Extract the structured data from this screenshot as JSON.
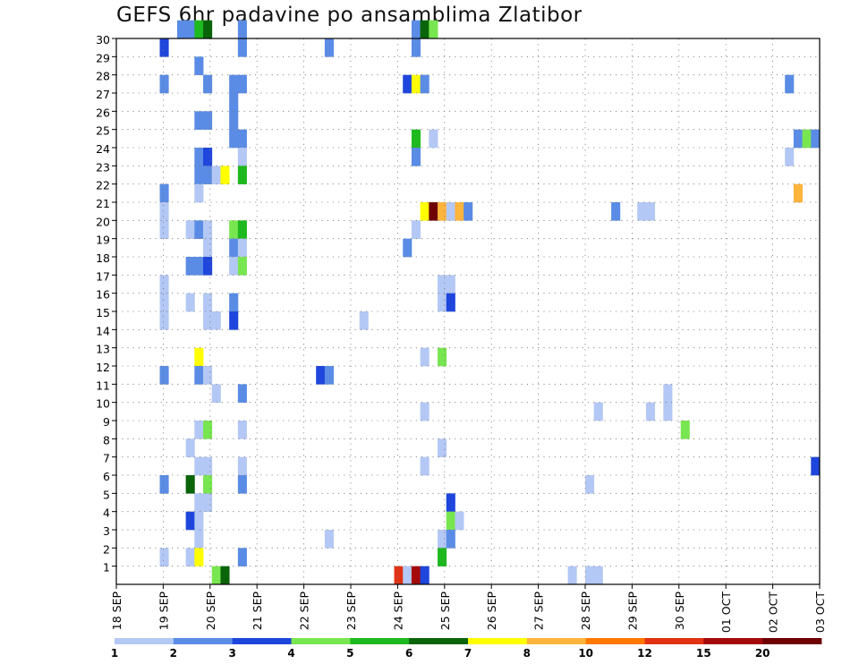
{
  "title": "GEFS 6hr padavine po ansamblima Zlatibor",
  "chart_data": {
    "type": "heatmap",
    "title": "GEFS 6hr padavine po ansamblima Zlatibor",
    "xlabel": "",
    "ylabel": "",
    "x_tick_labels": [
      "18 SEP",
      "19 SEP",
      "20 SEP",
      "21 SEP",
      "22 SEP",
      "23 SEP",
      "24 SEP",
      "25 SEP",
      "26 SEP",
      "27 SEP",
      "28 SEP",
      "29 SEP",
      "30 SEP",
      "01 OCT",
      "02 OCT",
      "03 OCT"
    ],
    "x_unit": "6h steps from 18 SEP 00Z",
    "y_tick_labels": [
      "1",
      "2",
      "3",
      "4",
      "5",
      "6",
      "7",
      "8",
      "9",
      "10",
      "11",
      "12",
      "13",
      "14",
      "15",
      "16",
      "17",
      "18",
      "19",
      "20",
      "21",
      "22",
      "23",
      "24",
      "25",
      "26",
      "27",
      "28",
      "29",
      "30"
    ],
    "ylim": [
      0,
      30
    ],
    "grid": true,
    "legend": "colorbar-bottom",
    "colorbar": {
      "boundaries": [
        "1",
        "2",
        "3",
        "4",
        "5",
        "6",
        "7",
        "8",
        "10",
        "12",
        "15",
        "20"
      ],
      "colors": [
        "#b4c8f5",
        "#5a8ce6",
        "#1e46dc",
        "#78e650",
        "#1eb91e",
        "#0a640a",
        "#ffff00",
        "#ffb43c",
        "#ff7800",
        "#e13214",
        "#a50a0a",
        "#6e0000"
      ]
    },
    "cells": [
      [
        7,
        30,
        1
      ],
      [
        8,
        30,
        1
      ],
      [
        9,
        30,
        4
      ],
      [
        10,
        30,
        5
      ],
      [
        14,
        30,
        1
      ],
      [
        34,
        30,
        1
      ],
      [
        35,
        30,
        5
      ],
      [
        36,
        30,
        3
      ],
      [
        5,
        29,
        2
      ],
      [
        14,
        29,
        1
      ],
      [
        24,
        29,
        1
      ],
      [
        34,
        29,
        1
      ],
      [
        9,
        28,
        1
      ],
      [
        5,
        27,
        1
      ],
      [
        10,
        27,
        1
      ],
      [
        13,
        27,
        1
      ],
      [
        14,
        27,
        1
      ],
      [
        33,
        27,
        2
      ],
      [
        34,
        27,
        6
      ],
      [
        35,
        27,
        1
      ],
      [
        77,
        27,
        1
      ],
      [
        13,
        26,
        1
      ],
      [
        9,
        25,
        1
      ],
      [
        10,
        25,
        1
      ],
      [
        13,
        25,
        1
      ],
      [
        13,
        24,
        1
      ],
      [
        14,
        24,
        1
      ],
      [
        34,
        24,
        4
      ],
      [
        36,
        24,
        0
      ],
      [
        78,
        24,
        1
      ],
      [
        79,
        24,
        3
      ],
      [
        80,
        24,
        1
      ],
      [
        9,
        23,
        1
      ],
      [
        10,
        23,
        2
      ],
      [
        14,
        23,
        0
      ],
      [
        34,
        23,
        1
      ],
      [
        77,
        23,
        0
      ],
      [
        9,
        22,
        1
      ],
      [
        10,
        22,
        1
      ],
      [
        11,
        22,
        0
      ],
      [
        12,
        22,
        6
      ],
      [
        14,
        22,
        4
      ],
      [
        5,
        21,
        1
      ],
      [
        9,
        21,
        0
      ],
      [
        78,
        21,
        7
      ],
      [
        5,
        20,
        0
      ],
      [
        35,
        20,
        6
      ],
      [
        36,
        20,
        11
      ],
      [
        37,
        20,
        7
      ],
      [
        38,
        20,
        0
      ],
      [
        39,
        20,
        7
      ],
      [
        40,
        20,
        1
      ],
      [
        57,
        20,
        1
      ],
      [
        60,
        20,
        0
      ],
      [
        61,
        20,
        0
      ],
      [
        5,
        19,
        0
      ],
      [
        8,
        19,
        0
      ],
      [
        9,
        19,
        1
      ],
      [
        10,
        19,
        0
      ],
      [
        13,
        19,
        3
      ],
      [
        14,
        19,
        4
      ],
      [
        34,
        19,
        0
      ],
      [
        10,
        18,
        0
      ],
      [
        13,
        18,
        1
      ],
      [
        14,
        18,
        0
      ],
      [
        33,
        18,
        1
      ],
      [
        8,
        17,
        1
      ],
      [
        9,
        17,
        1
      ],
      [
        10,
        17,
        2
      ],
      [
        13,
        17,
        0
      ],
      [
        14,
        17,
        3
      ],
      [
        5,
        16,
        0
      ],
      [
        37,
        16,
        0
      ],
      [
        38,
        16,
        0
      ],
      [
        5,
        15,
        0
      ],
      [
        8,
        15,
        0
      ],
      [
        10,
        15,
        0
      ],
      [
        13,
        15,
        1
      ],
      [
        37,
        15,
        0
      ],
      [
        38,
        15,
        2
      ],
      [
        5,
        14,
        0
      ],
      [
        10,
        14,
        0
      ],
      [
        11,
        14,
        0
      ],
      [
        13,
        14,
        2
      ],
      [
        28,
        14,
        0
      ],
      [
        35,
        12,
        0
      ],
      [
        37,
        12,
        3
      ],
      [
        9,
        12,
        6
      ],
      [
        5,
        11,
        1
      ],
      [
        9,
        11,
        1
      ],
      [
        10,
        11,
        0
      ],
      [
        23,
        11,
        2
      ],
      [
        24,
        11,
        1
      ],
      [
        11,
        10,
        0
      ],
      [
        14,
        10,
        1
      ],
      [
        63,
        10,
        0
      ],
      [
        35,
        9,
        0
      ],
      [
        55,
        9,
        0
      ],
      [
        61,
        9,
        0
      ],
      [
        63,
        9,
        0
      ],
      [
        9,
        8,
        0
      ],
      [
        10,
        8,
        3
      ],
      [
        14,
        8,
        0
      ],
      [
        65,
        8,
        3
      ],
      [
        8,
        7,
        0
      ],
      [
        37,
        7,
        0
      ],
      [
        9,
        6,
        0
      ],
      [
        10,
        6,
        0
      ],
      [
        14,
        6,
        0
      ],
      [
        35,
        6,
        0
      ],
      [
        80,
        6,
        2
      ],
      [
        5,
        5,
        1
      ],
      [
        8,
        5,
        5
      ],
      [
        10,
        5,
        3
      ],
      [
        14,
        5,
        1
      ],
      [
        54,
        5,
        0
      ],
      [
        9,
        4,
        0
      ],
      [
        10,
        4,
        0
      ],
      [
        38,
        4,
        2
      ],
      [
        8,
        3,
        2
      ],
      [
        9,
        3,
        0
      ],
      [
        38,
        3,
        3
      ],
      [
        39,
        3,
        0
      ],
      [
        9,
        2,
        0
      ],
      [
        37,
        2,
        0
      ],
      [
        38,
        2,
        1
      ],
      [
        24,
        2,
        0
      ],
      [
        5,
        1,
        0
      ],
      [
        8,
        1,
        0
      ],
      [
        9,
        1,
        6
      ],
      [
        14,
        1,
        1
      ],
      [
        37,
        1,
        4
      ],
      [
        11,
        0,
        3
      ],
      [
        12,
        0,
        5
      ],
      [
        32,
        0,
        9
      ],
      [
        33,
        0,
        0
      ],
      [
        34,
        0,
        10
      ],
      [
        35,
        0,
        2
      ],
      [
        52,
        0,
        0
      ],
      [
        54,
        0,
        0
      ],
      [
        55,
        0,
        0
      ]
    ]
  }
}
